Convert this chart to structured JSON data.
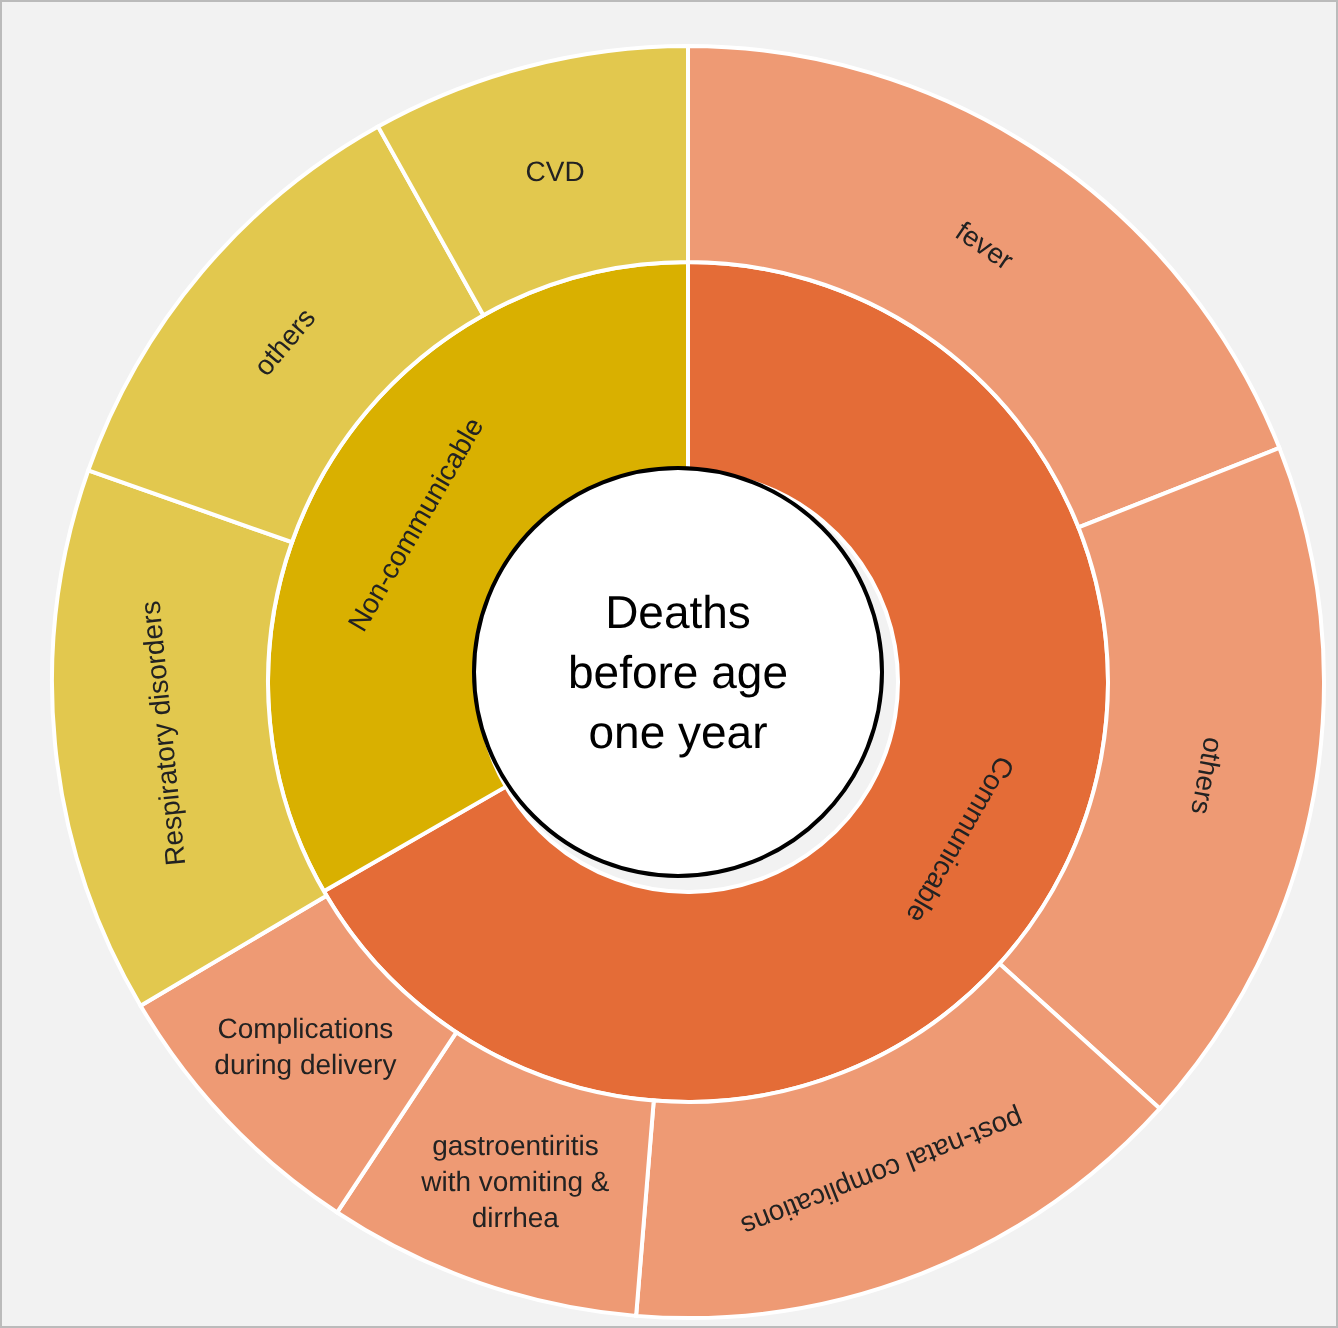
{
  "chart_data": [
    {
      "type": "donut",
      "title": "Deaths before age one year",
      "categories": [
        "Communicable",
        "Non-communicable"
      ],
      "values": [
        66.7,
        33.3
      ],
      "colors": [
        "#e46c37",
        "#d9b000"
      ]
    },
    {
      "type": "donut",
      "categories": [
        "fever",
        "others",
        "post-natal complications",
        "gastroentiritis with vomiting & dirrhea",
        "Complications during delivery",
        "Respiratory disorders",
        "others",
        "CVD"
      ],
      "values": [
        19.0,
        17.7,
        14.6,
        8.0,
        7.2,
        13.9,
        11.5,
        8.1
      ],
      "colors": [
        "#ee9a74",
        "#ee9a74",
        "#ee9a74",
        "#ee9a74",
        "#ee9a74",
        "#e2c84e",
        "#e2c84e",
        "#e2c84e"
      ]
    }
  ]
}
